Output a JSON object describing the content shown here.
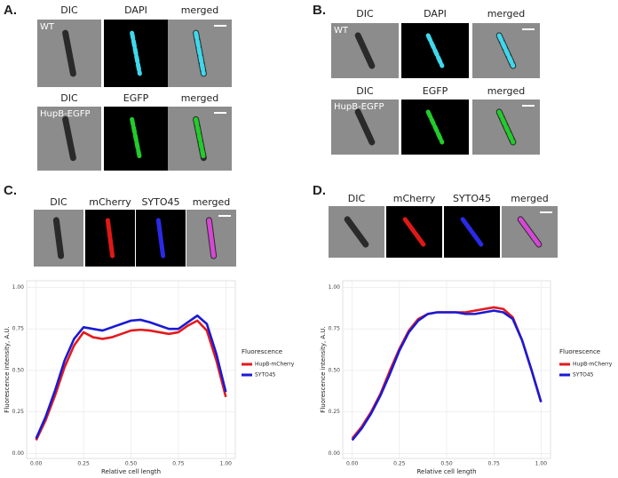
{
  "panels": [
    {
      "label": "A.",
      "rows": [
        {
          "channels": [
            "DIC",
            "DAPI",
            "merged"
          ],
          "strain": "WT"
        },
        {
          "channels": [
            "DIC",
            "EGFP",
            "merged"
          ],
          "strain": "HupB-EGFP"
        }
      ]
    },
    {
      "label": "B.",
      "rows": [
        {
          "channels": [
            "DIC",
            "DAPI",
            "merged"
          ],
          "strain": "WT"
        },
        {
          "channels": [
            "DIC",
            "EGFP",
            "merged"
          ],
          "strain": "HupB-EGFP"
        }
      ]
    },
    {
      "label": "C.",
      "rows": [
        {
          "channels": [
            "DIC",
            "mCherry",
            "SYTO45",
            "merged"
          ]
        }
      ]
    },
    {
      "label": "D.",
      "rows": [
        {
          "channels": [
            "DIC",
            "mCherry",
            "SYTO45",
            "merged"
          ]
        }
      ]
    }
  ],
  "chart_data": [
    {
      "type": "line",
      "x_label": "Relative cell length",
      "y_label": "Fluorescence intensity, A.U.",
      "legend_title": "Fluorescence",
      "legend": "right",
      "grid": true,
      "x": [
        0,
        0.05,
        0.1,
        0.15,
        0.2,
        0.25,
        0.3,
        0.35,
        0.4,
        0.45,
        0.5,
        0.55,
        0.6,
        0.65,
        0.7,
        0.75,
        0.8,
        0.85,
        0.9,
        0.95,
        1.0
      ],
      "series": [
        {
          "name": "HupB-mCherry",
          "color": "#e41a1c",
          "values": [
            0.08,
            0.2,
            0.35,
            0.52,
            0.65,
            0.73,
            0.7,
            0.69,
            0.7,
            0.72,
            0.74,
            0.745,
            0.74,
            0.73,
            0.72,
            0.73,
            0.77,
            0.8,
            0.74,
            0.56,
            0.34
          ]
        },
        {
          "name": "SYTO45",
          "color": "#1a1ad4",
          "values": [
            0.09,
            0.22,
            0.38,
            0.56,
            0.69,
            0.76,
            0.75,
            0.74,
            0.76,
            0.78,
            0.8,
            0.805,
            0.79,
            0.77,
            0.75,
            0.75,
            0.79,
            0.83,
            0.78,
            0.6,
            0.37
          ]
        }
      ],
      "xlim": [
        -0.05,
        1.05
      ],
      "ylim": [
        -0.03,
        1.04
      ],
      "xticks": [
        {
          "value": 0,
          "label": "0.00"
        },
        {
          "value": 0.25,
          "label": "0.25"
        },
        {
          "value": 0.5,
          "label": "0.50"
        },
        {
          "value": 0.75,
          "label": "0.75"
        },
        {
          "value": 1,
          "label": "1.00"
        }
      ],
      "yticks": [
        {
          "value": 0,
          "label": "0.00"
        },
        {
          "value": 0.25,
          "label": "0.25"
        },
        {
          "value": 0.5,
          "label": "0.50"
        },
        {
          "value": 0.75,
          "label": "0.75"
        },
        {
          "value": 1,
          "label": "1.00"
        }
      ]
    },
    {
      "type": "line",
      "x_label": "Relative cell length",
      "y_label": "Fluorescence intensity, A.U.",
      "legend_title": "Fluorescence",
      "legend": "right",
      "grid": true,
      "x": [
        0,
        0.05,
        0.1,
        0.15,
        0.2,
        0.25,
        0.3,
        0.35,
        0.4,
        0.45,
        0.5,
        0.55,
        0.6,
        0.65,
        0.7,
        0.75,
        0.8,
        0.85,
        0.9,
        0.95,
        1.0
      ],
      "series": [
        {
          "name": "HupB-mCherry",
          "color": "#e41a1c",
          "values": [
            0.09,
            0.16,
            0.25,
            0.36,
            0.5,
            0.63,
            0.74,
            0.81,
            0.84,
            0.85,
            0.85,
            0.85,
            0.85,
            0.86,
            0.87,
            0.88,
            0.87,
            0.82,
            0.68,
            0.5,
            0.31
          ]
        },
        {
          "name": "SYTO45",
          "color": "#1a1ad4",
          "values": [
            0.08,
            0.15,
            0.24,
            0.35,
            0.48,
            0.62,
            0.73,
            0.8,
            0.84,
            0.85,
            0.85,
            0.85,
            0.84,
            0.84,
            0.85,
            0.86,
            0.85,
            0.81,
            0.68,
            0.5,
            0.31
          ]
        }
      ],
      "xlim": [
        -0.05,
        1.05
      ],
      "ylim": [
        -0.03,
        1.04
      ],
      "xticks": [
        {
          "value": 0,
          "label": "0.00"
        },
        {
          "value": 0.25,
          "label": "0.25"
        },
        {
          "value": 0.5,
          "label": "0.50"
        },
        {
          "value": 0.75,
          "label": "0.75"
        },
        {
          "value": 1,
          "label": "1.00"
        }
      ],
      "yticks": [
        {
          "value": 0,
          "label": "0.00"
        },
        {
          "value": 0.25,
          "label": "0.25"
        },
        {
          "value": 0.5,
          "label": "0.50"
        },
        {
          "value": 0.75,
          "label": "0.75"
        },
        {
          "value": 1,
          "label": "1.00"
        }
      ]
    }
  ]
}
